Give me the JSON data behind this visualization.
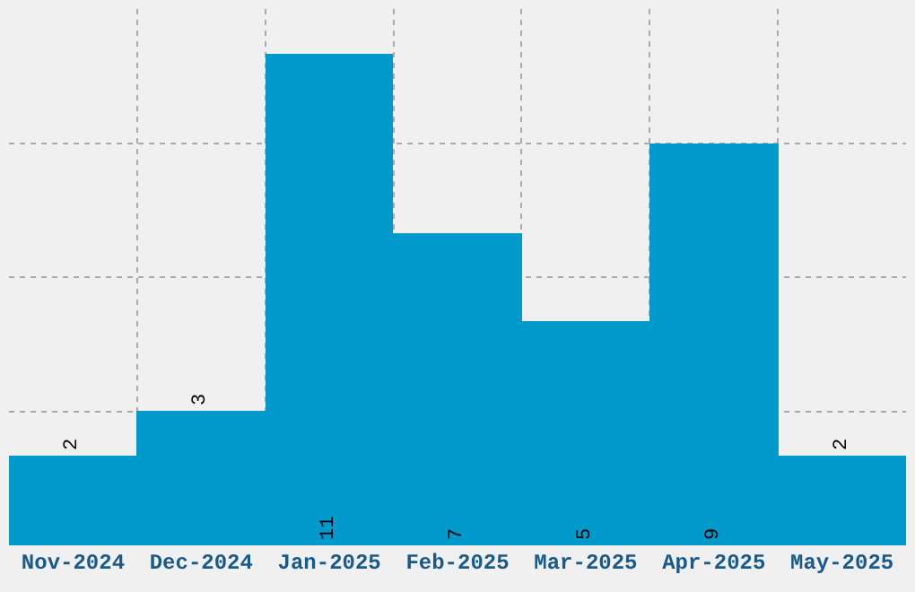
{
  "chart_data": {
    "type": "bar",
    "categories": [
      "Nov-2024",
      "Dec-2024",
      "Jan-2025",
      "Feb-2025",
      "Mar-2025",
      "Apr-2025",
      "May-2025"
    ],
    "values": [
      2,
      3,
      11,
      7,
      5,
      9,
      2
    ],
    "color": "#0099cc",
    "ylim": [
      0,
      12
    ],
    "yticks": [
      {
        "value": 3,
        "label": null
      },
      {
        "value": 6,
        "label": null
      },
      {
        "value": 9,
        "label": null
      }
    ],
    "tick_labels": "x",
    "grid": true,
    "data_labels": true
  }
}
